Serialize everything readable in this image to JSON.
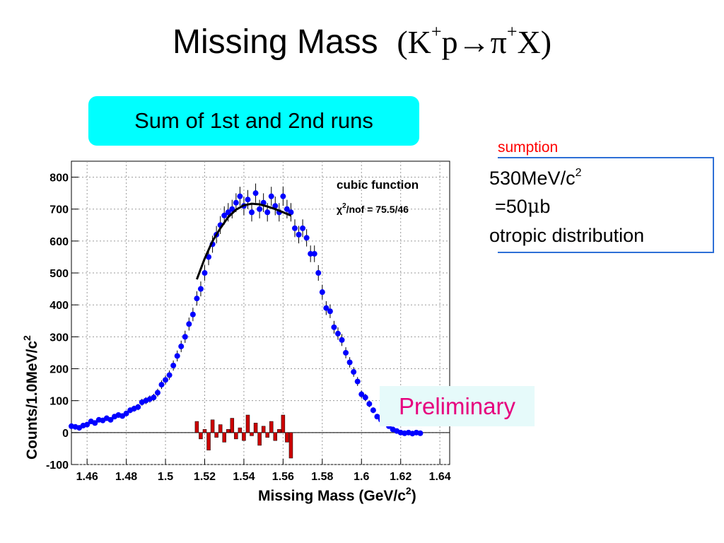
{
  "slide": {
    "title_text": "Missing Mass",
    "title_formula": {
      "open": "(",
      "k": "K",
      "k_sup": "+",
      "p": "p",
      "arrow": "→",
      "pi": "π",
      "pi_sup": "+",
      "x": "X",
      "close": ")"
    },
    "runs_label": "Sum of 1st and 2nd runs",
    "preliminary_label": "Preliminary",
    "assumption": {
      "title": "sumption",
      "line1": "530MeV/c",
      "line1_sup": "2",
      "line2_a": "=50",
      "line2_mu": "μ",
      "line2_b": "b",
      "line3": "otropic distribution"
    }
  },
  "colors": {
    "runs_box": "#00ffff",
    "points": "#0000ff",
    "fit_curve": "#000000",
    "residuals": "#cc0000",
    "preliminary_text": "#e6007e",
    "assumption_title": "#ff0000",
    "assumption_border": "#2e6fd6"
  },
  "chart_data": {
    "type": "scatter",
    "xlabel": "Missing Mass (GeV/c",
    "xlabel_sup": "2",
    "xlabel_close": ")",
    "ylabel": "Counts/1.0MeV/c",
    "ylabel_sup": "2",
    "xlim": [
      1.452,
      1.645
    ],
    "ylim": [
      -100,
      850
    ],
    "xticks": [
      "1.46",
      "1.48",
      "1.5",
      "1.52",
      "1.54",
      "1.56",
      "1.58",
      "1.6",
      "1.62",
      "1.64"
    ],
    "xtick_values": [
      1.46,
      1.48,
      1.5,
      1.52,
      1.54,
      1.56,
      1.58,
      1.6,
      1.62,
      1.64
    ],
    "yticks": [
      "-100",
      "0",
      "100",
      "200",
      "300",
      "400",
      "500",
      "600",
      "700",
      "800"
    ],
    "ytick_values": [
      -100,
      0,
      100,
      200,
      300,
      400,
      500,
      600,
      700,
      800
    ],
    "grid": true,
    "legend": {
      "position": "top-right",
      "title": "cubic function",
      "chi_text": "χ",
      "chi_sup": "2",
      "fit_text": "/nof = 75.5/46"
    },
    "series": [
      {
        "name": "data",
        "marker": "dot-with-error-bars",
        "x": [
          1.452,
          1.454,
          1.456,
          1.458,
          1.46,
          1.462,
          1.464,
          1.466,
          1.468,
          1.47,
          1.472,
          1.474,
          1.476,
          1.478,
          1.48,
          1.482,
          1.484,
          1.486,
          1.488,
          1.49,
          1.492,
          1.494,
          1.496,
          1.498,
          1.5,
          1.502,
          1.504,
          1.506,
          1.508,
          1.51,
          1.512,
          1.514,
          1.516,
          1.518,
          1.52,
          1.522,
          1.524,
          1.526,
          1.528,
          1.53,
          1.532,
          1.534,
          1.536,
          1.538,
          1.54,
          1.542,
          1.544,
          1.546,
          1.548,
          1.55,
          1.552,
          1.554,
          1.556,
          1.558,
          1.56,
          1.562,
          1.564,
          1.566,
          1.568,
          1.57,
          1.572,
          1.574,
          1.576,
          1.578,
          1.58,
          1.582,
          1.584,
          1.586,
          1.588,
          1.59,
          1.592,
          1.594,
          1.596,
          1.598,
          1.6,
          1.602,
          1.604,
          1.606,
          1.608,
          1.61,
          1.612,
          1.614,
          1.616,
          1.618,
          1.62,
          1.622,
          1.624,
          1.626,
          1.628,
          1.63
        ],
        "y": [
          20,
          18,
          15,
          22,
          25,
          35,
          30,
          40,
          38,
          45,
          40,
          50,
          55,
          52,
          60,
          70,
          75,
          80,
          95,
          100,
          105,
          110,
          125,
          150,
          165,
          180,
          210,
          240,
          270,
          300,
          340,
          370,
          420,
          450,
          500,
          550,
          590,
          620,
          650,
          680,
          690,
          700,
          720,
          740,
          710,
          730,
          690,
          750,
          700,
          720,
          690,
          740,
          710,
          690,
          740,
          700,
          690,
          640,
          620,
          640,
          610,
          560,
          560,
          500,
          440,
          390,
          380,
          330,
          310,
          290,
          250,
          220,
          190,
          160,
          120,
          110,
          90,
          70,
          50,
          40,
          30,
          20,
          10,
          5,
          0,
          -2,
          0,
          -3,
          0,
          -2
        ]
      },
      {
        "name": "cubic fit",
        "x": [
          1.516,
          1.52,
          1.524,
          1.528,
          1.532,
          1.536,
          1.54,
          1.544,
          1.548,
          1.552,
          1.556,
          1.56,
          1.564
        ],
        "y": [
          480,
          545,
          600,
          640,
          675,
          698,
          712,
          717,
          715,
          708,
          700,
          690,
          680
        ]
      },
      {
        "name": "residuals",
        "marker": "bars",
        "x": [
          1.516,
          1.518,
          1.52,
          1.522,
          1.524,
          1.526,
          1.528,
          1.53,
          1.532,
          1.534,
          1.536,
          1.538,
          1.54,
          1.542,
          1.544,
          1.546,
          1.548,
          1.55,
          1.552,
          1.554,
          1.556,
          1.558,
          1.56,
          1.562,
          1.564
        ],
        "y": [
          35,
          -20,
          10,
          -55,
          40,
          -15,
          25,
          -30,
          10,
          45,
          -20,
          15,
          -25,
          55,
          -10,
          30,
          -40,
          20,
          -15,
          35,
          -25,
          10,
          55,
          -30,
          -80
        ]
      }
    ]
  }
}
